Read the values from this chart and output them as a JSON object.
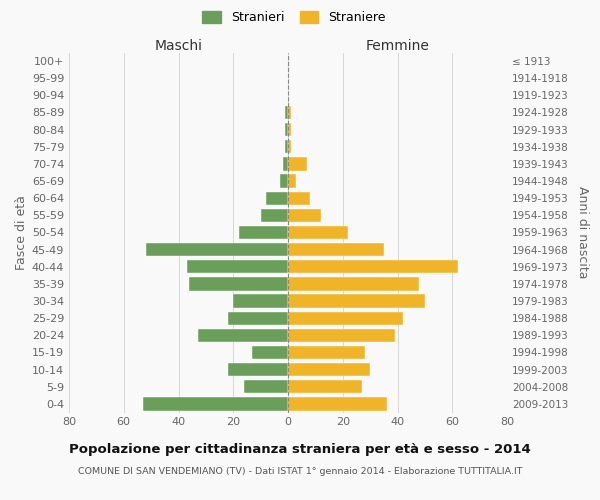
{
  "age_groups": [
    "0-4",
    "5-9",
    "10-14",
    "15-19",
    "20-24",
    "25-29",
    "30-34",
    "35-39",
    "40-44",
    "45-49",
    "50-54",
    "55-59",
    "60-64",
    "65-69",
    "70-74",
    "75-79",
    "80-84",
    "85-89",
    "90-94",
    "95-99",
    "100+"
  ],
  "birth_years": [
    "2009-2013",
    "2004-2008",
    "1999-2003",
    "1994-1998",
    "1989-1993",
    "1984-1988",
    "1979-1983",
    "1974-1978",
    "1969-1973",
    "1964-1968",
    "1959-1963",
    "1954-1958",
    "1949-1953",
    "1944-1948",
    "1939-1943",
    "1934-1938",
    "1929-1933",
    "1924-1928",
    "1919-1923",
    "1914-1918",
    "≤ 1913"
  ],
  "maschi": [
    53,
    16,
    22,
    13,
    33,
    22,
    20,
    36,
    37,
    52,
    18,
    10,
    8,
    3,
    2,
    1,
    1,
    1,
    0,
    0,
    0
  ],
  "femmine": [
    36,
    27,
    30,
    28,
    39,
    42,
    50,
    48,
    62,
    35,
    22,
    12,
    8,
    3,
    7,
    1,
    1,
    1,
    0,
    0,
    0
  ],
  "color_maschi": "#6a9e5a",
  "color_femmine": "#f0b429",
  "xlim": 80,
  "title": "Popolazione per cittadinanza straniera per età e sesso - 2014",
  "subtitle": "COMUNE DI SAN VENDEMIANO (TV) - Dati ISTAT 1° gennaio 2014 - Elaborazione TUTTITALIA.IT",
  "header_left": "Maschi",
  "header_right": "Femmine",
  "ylabel_left": "Fasce di età",
  "ylabel_right": "Anni di nascita",
  "legend_maschi": "Stranieri",
  "legend_femmine": "Straniere",
  "bg_color": "#f9f9f9",
  "grid_color": "#d0d0d0",
  "xticks": [
    80,
    60,
    40,
    20,
    0,
    20,
    40,
    60,
    80
  ]
}
